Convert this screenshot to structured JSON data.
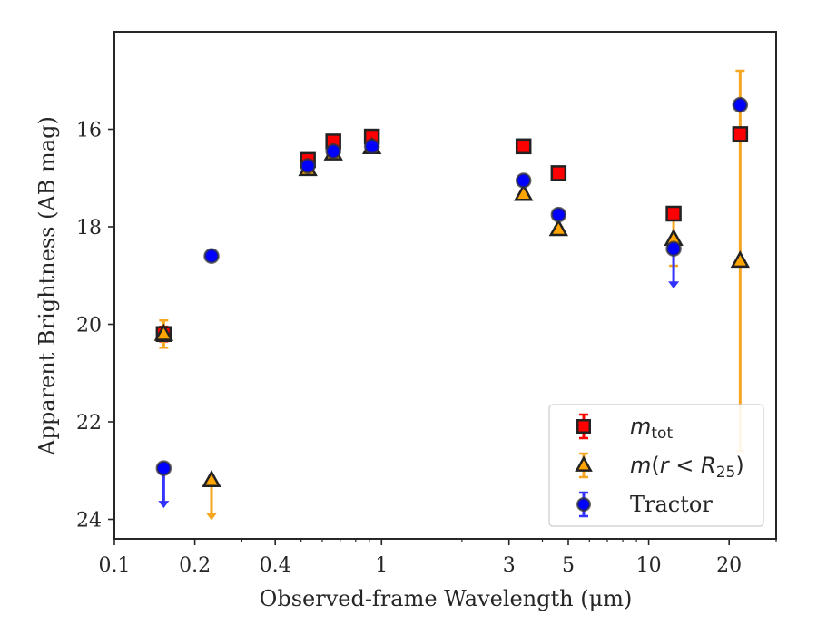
{
  "chart_data": {
    "type": "scatter",
    "x_scale": "log",
    "y_inverted": true,
    "xlim": [
      0.1,
      30
    ],
    "ylim": [
      24.4,
      14.0
    ],
    "xlabel": "Observed-frame Wavelength (μm)",
    "ylabel": "Apparent Brightness (AB mag)",
    "x_ticks": [
      {
        "value": 0.1,
        "label": "0.1"
      },
      {
        "value": 0.2,
        "label": "0.2"
      },
      {
        "value": 0.4,
        "label": "0.4"
      },
      {
        "value": 1,
        "label": "1"
      },
      {
        "value": 3,
        "label": "3"
      },
      {
        "value": 5,
        "label": "5"
      },
      {
        "value": 10,
        "label": "10"
      },
      {
        "value": 20,
        "label": "20"
      }
    ],
    "y_ticks": [
      {
        "value": 16,
        "label": "16"
      },
      {
        "value": 18,
        "label": "18"
      },
      {
        "value": 20,
        "label": "20"
      },
      {
        "value": 22,
        "label": "22"
      },
      {
        "value": 24,
        "label": "24"
      }
    ],
    "legend_position": "lower-right",
    "series": [
      {
        "name": "m_tot",
        "legend_label": "mtot",
        "marker": "square",
        "color": "#ff0000",
        "edge_color": "#222222",
        "errorbar_color": "#ff0000",
        "points": [
          {
            "x": 0.153,
            "y": 20.2,
            "err": 0.15
          },
          {
            "x": 0.53,
            "y": 16.63,
            "err": 0.03
          },
          {
            "x": 0.66,
            "y": 16.25,
            "err": 0.03
          },
          {
            "x": 0.92,
            "y": 16.15,
            "err": 0.03
          },
          {
            "x": 3.4,
            "y": 16.35,
            "err": 0.03
          },
          {
            "x": 4.6,
            "y": 16.9,
            "err": 0.03
          },
          {
            "x": 12.4,
            "y": 17.73,
            "err": 0.05
          },
          {
            "x": 22.0,
            "y": 16.1,
            "err": 0.05
          }
        ]
      },
      {
        "name": "m(r < R25)",
        "legend_label": "m(r < R25)",
        "marker": "triangle",
        "color": "#ffa500",
        "edge_color": "#222222",
        "errorbar_color": "#f5a623",
        "points": [
          {
            "x": 0.153,
            "y": 20.2,
            "err": 0.28
          },
          {
            "x": 0.53,
            "y": 16.82,
            "err": 0.03
          },
          {
            "x": 0.66,
            "y": 16.5,
            "err": 0.03
          },
          {
            "x": 0.92,
            "y": 16.37,
            "err": 0.03
          },
          {
            "x": 3.4,
            "y": 17.33,
            "err": 0.03
          },
          {
            "x": 4.6,
            "y": 18.05,
            "err": 0.04
          },
          {
            "x": 12.4,
            "y": 18.25,
            "err": 0.55
          },
          {
            "x": 22.0,
            "y": 18.7,
            "err": 3.9
          }
        ],
        "upper_limits": [
          {
            "x": 0.231,
            "y": 23.2
          }
        ]
      },
      {
        "name": "Tractor",
        "legend_label": "Tractor",
        "marker": "circle",
        "color": "#0000ff",
        "edge_color": "#333333",
        "errorbar_color": "#3333ff",
        "points": [
          {
            "x": 0.231,
            "y": 18.6,
            "err": 0.03
          },
          {
            "x": 0.53,
            "y": 16.75,
            "err": 0.03
          },
          {
            "x": 0.66,
            "y": 16.45,
            "err": 0.03
          },
          {
            "x": 0.92,
            "y": 16.35,
            "err": 0.03
          },
          {
            "x": 3.4,
            "y": 17.05,
            "err": 0.03
          },
          {
            "x": 4.6,
            "y": 17.75,
            "err": 0.03
          },
          {
            "x": 22.0,
            "y": 15.5,
            "err": 0.05
          }
        ],
        "upper_limits": [
          {
            "x": 0.153,
            "y": 22.95
          },
          {
            "x": 12.4,
            "y": 18.45
          }
        ]
      }
    ]
  }
}
